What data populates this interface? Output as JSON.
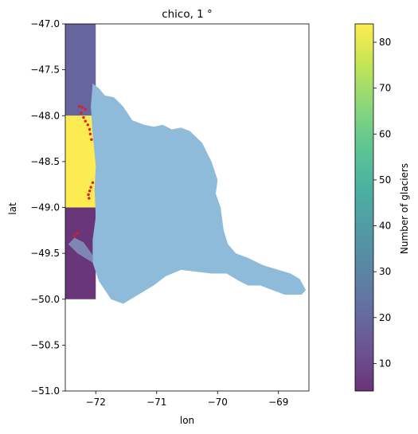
{
  "chart_data": {
    "type": "heatmap",
    "title": "chico, 1 °",
    "xlabel": "lon",
    "ylabel": "lat",
    "xlim": [
      -72.5,
      -68.5
    ],
    "ylim": [
      -51,
      -47
    ],
    "x_ticks": [
      -72,
      -71,
      -70,
      -69
    ],
    "x_tick_labels": [
      "−72",
      "−71",
      "−70",
      "−69"
    ],
    "y_ticks": [
      -47.0,
      -47.5,
      -48.0,
      -48.5,
      -49.0,
      -49.5,
      -50.0,
      -50.5,
      -51.0
    ],
    "y_tick_labels": [
      "−47.0",
      "−47.5",
      "−48.0",
      "−48.5",
      "−49.0",
      "−49.5",
      "−50.0",
      "−50.5",
      "−51.0"
    ],
    "grid": false,
    "colormap": "viridis",
    "cell_alpha": 0.8,
    "cells": [
      {
        "lon_min": -73,
        "lon_max": -72,
        "lat_min": -48,
        "lat_max": -47,
        "value": 19
      },
      {
        "lon_min": -73,
        "lon_max": -72,
        "lat_min": -49,
        "lat_max": -48,
        "value": 84
      },
      {
        "lon_min": -73,
        "lon_max": -72,
        "lat_min": -50,
        "lat_max": -49,
        "value": 5
      }
    ],
    "basin": {
      "color": "#8fbbda",
      "outline": [
        [
          -72.05,
          -47.65
        ],
        [
          -71.95,
          -47.7
        ],
        [
          -71.85,
          -47.78
        ],
        [
          -71.7,
          -47.8
        ],
        [
          -71.55,
          -47.9
        ],
        [
          -71.4,
          -48.05
        ],
        [
          -71.2,
          -48.1
        ],
        [
          -71.05,
          -48.12
        ],
        [
          -70.9,
          -48.1
        ],
        [
          -70.75,
          -48.15
        ],
        [
          -70.6,
          -48.13
        ],
        [
          -70.45,
          -48.17
        ],
        [
          -70.25,
          -48.3
        ],
        [
          -70.1,
          -48.5
        ],
        [
          -70.0,
          -48.7
        ],
        [
          -70.03,
          -48.85
        ],
        [
          -69.95,
          -49.0
        ],
        [
          -69.9,
          -49.25
        ],
        [
          -69.83,
          -49.4
        ],
        [
          -69.7,
          -49.5
        ],
        [
          -69.5,
          -49.55
        ],
        [
          -69.25,
          -49.63
        ],
        [
          -69.0,
          -49.68
        ],
        [
          -68.8,
          -49.72
        ],
        [
          -68.65,
          -49.78
        ],
        [
          -68.55,
          -49.9
        ],
        [
          -68.62,
          -49.95
        ],
        [
          -68.9,
          -49.95
        ],
        [
          -69.1,
          -49.9
        ],
        [
          -69.3,
          -49.85
        ],
        [
          -69.5,
          -49.85
        ],
        [
          -69.65,
          -49.8
        ],
        [
          -69.85,
          -49.72
        ],
        [
          -70.1,
          -49.72
        ],
        [
          -70.35,
          -49.7
        ],
        [
          -70.6,
          -49.68
        ],
        [
          -70.85,
          -49.75
        ],
        [
          -71.05,
          -49.85
        ],
        [
          -71.3,
          -49.95
        ],
        [
          -71.55,
          -50.05
        ],
        [
          -71.75,
          -50.0
        ],
        [
          -71.95,
          -49.8
        ],
        [
          -72.05,
          -49.6
        ],
        [
          -72.05,
          -49.35
        ],
        [
          -72.0,
          -49.1
        ],
        [
          -72.02,
          -48.8
        ],
        [
          -72.0,
          -48.55
        ],
        [
          -72.05,
          -48.2
        ],
        [
          -72.08,
          -47.9
        ]
      ],
      "tongue": [
        [
          -72.05,
          -49.52
        ],
        [
          -72.2,
          -49.38
        ],
        [
          -72.35,
          -49.33
        ],
        [
          -72.45,
          -49.4
        ],
        [
          -72.3,
          -49.5
        ],
        [
          -72.05,
          -49.6
        ]
      ]
    },
    "glacier_points": [
      [
        -72.27,
        -47.9
      ],
      [
        -72.22,
        -47.91
      ],
      [
        -72.17,
        -47.93
      ],
      [
        -72.24,
        -47.97
      ],
      [
        -72.2,
        -48.02
      ],
      [
        -72.17,
        -48.06
      ],
      [
        -72.13,
        -48.1
      ],
      [
        -72.1,
        -48.15
      ],
      [
        -72.09,
        -48.2
      ],
      [
        -72.07,
        -48.26
      ],
      [
        -72.05,
        -48.73
      ],
      [
        -72.08,
        -48.78
      ],
      [
        -72.1,
        -48.82
      ],
      [
        -72.12,
        -48.86
      ],
      [
        -72.11,
        -48.9
      ],
      [
        -72.3,
        -49.28
      ],
      [
        -72.35,
        -49.31
      ]
    ],
    "glacier_color": "#e41a1c",
    "colorbar": {
      "label": "Number of glaciers",
      "range": [
        4,
        84
      ],
      "ticks": [
        10,
        20,
        30,
        40,
        50,
        60,
        70,
        80
      ],
      "tick_labels": [
        "10",
        "20",
        "30",
        "40",
        "50",
        "60",
        "70",
        "80"
      ]
    }
  }
}
